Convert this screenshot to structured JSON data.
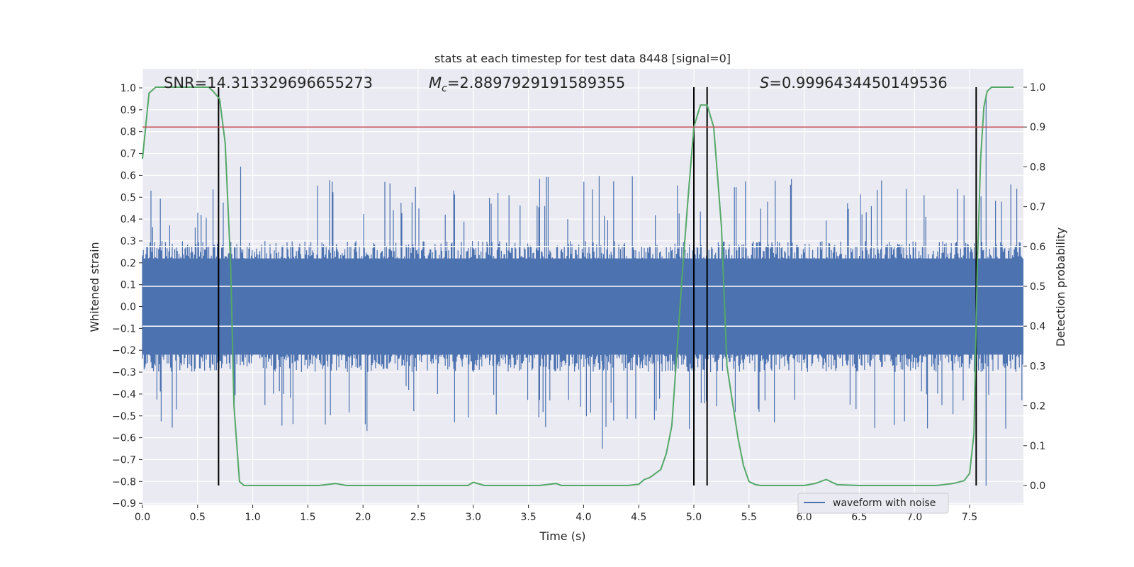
{
  "chart_data": {
    "type": "line",
    "title": "stats at each timestep for test data 8448 [signal=0]",
    "xlabel": "Time (s)",
    "ylabel_left": "Whitened strain",
    "ylabel_right": "Detection probability",
    "xlim": [
      0.0,
      8.0
    ],
    "ylim_left": [
      -0.9,
      1.0
    ],
    "ylim_right": [
      0.0,
      1.0
    ],
    "x_ticks": [
      "0.0",
      "0.5",
      "1.0",
      "1.5",
      "2.0",
      "2.5",
      "3.0",
      "3.5",
      "4.0",
      "4.5",
      "5.0",
      "5.5",
      "6.0",
      "6.5",
      "7.0",
      "7.5"
    ],
    "y_left_ticks": [
      "1.0",
      "0.9",
      "0.8",
      "0.7",
      "0.6",
      "0.5",
      "0.4",
      "0.3",
      "0.2",
      "0.1",
      "0.0",
      "−0.1",
      "−0.2",
      "−0.3",
      "−0.4",
      "−0.5",
      "−0.6",
      "−0.7",
      "−0.8",
      "−0.9"
    ],
    "y_right_ticks": [
      "1.0",
      "0.9",
      "0.8",
      "0.7",
      "0.6",
      "0.5",
      "0.4",
      "0.3",
      "0.2",
      "0.1",
      "0.0"
    ],
    "annotations": {
      "snr": "SNR=14.313329696655273",
      "mc_symbol": "M",
      "mc_sub": "c",
      "mc_value": "=2.8897929191589355",
      "s_symbol": "S",
      "s_value": "=0.9996434450149536"
    },
    "legend": {
      "label": "waveform with noise",
      "placement": "lower-right"
    },
    "threshold_probability": 0.9,
    "vertical_lines_s": [
      0.69,
      5.0,
      5.12,
      7.56
    ],
    "noise_series": {
      "name": "waveform with noise",
      "color": "#4c72b0",
      "typical_abs_amplitude": 0.3,
      "peak_max": 0.97,
      "peak_min": -0.82
    },
    "probability_series": {
      "name": "detection probability",
      "color": "#55a868",
      "x": [
        0.0,
        0.06,
        0.12,
        0.2,
        0.3,
        0.4,
        0.5,
        0.6,
        0.64,
        0.7,
        0.75,
        0.8,
        0.83,
        0.88,
        0.92,
        1.0,
        1.2,
        1.4,
        1.6,
        1.75,
        1.85,
        2.0,
        2.2,
        2.4,
        2.6,
        2.8,
        2.95,
        3.0,
        3.1,
        3.2,
        3.4,
        3.6,
        3.75,
        3.8,
        3.9,
        4.0,
        4.2,
        4.4,
        4.5,
        4.55,
        4.6,
        4.7,
        4.75,
        4.8,
        4.85,
        4.9,
        4.95,
        5.0,
        5.06,
        5.12,
        5.18,
        5.25,
        5.3,
        5.4,
        5.45,
        5.5,
        5.55,
        5.6,
        5.8,
        6.0,
        6.1,
        6.2,
        6.3,
        6.5,
        6.8,
        7.0,
        7.2,
        7.35,
        7.45,
        7.5,
        7.54,
        7.57,
        7.6,
        7.63,
        7.66,
        7.7,
        7.8,
        7.9
      ],
      "y": [
        0.82,
        0.985,
        1.0,
        1.0,
        1.0,
        1.0,
        1.0,
        1.0,
        0.99,
        0.97,
        0.86,
        0.55,
        0.2,
        0.01,
        0.0,
        0.0,
        0.0,
        0.0,
        0.0,
        0.005,
        0.0,
        0.0,
        0.0,
        0.0,
        0.0,
        0.0,
        0.0,
        0.008,
        0.0,
        0.0,
        0.0,
        0.0,
        0.005,
        0.0,
        0.0,
        0.0,
        0.0,
        0.0,
        0.003,
        0.015,
        0.02,
        0.04,
        0.08,
        0.15,
        0.35,
        0.55,
        0.73,
        0.9,
        0.955,
        0.955,
        0.9,
        0.65,
        0.3,
        0.12,
        0.05,
        0.01,
        0.003,
        0.0,
        0.0,
        0.0,
        0.005,
        0.015,
        0.002,
        0.0,
        0.0,
        0.0,
        0.0,
        0.005,
        0.012,
        0.03,
        0.13,
        0.55,
        0.82,
        0.95,
        0.99,
        1.0,
        1.0,
        1.0
      ]
    },
    "threshold_color": "#c44e52",
    "vline_color": "#000000"
  }
}
